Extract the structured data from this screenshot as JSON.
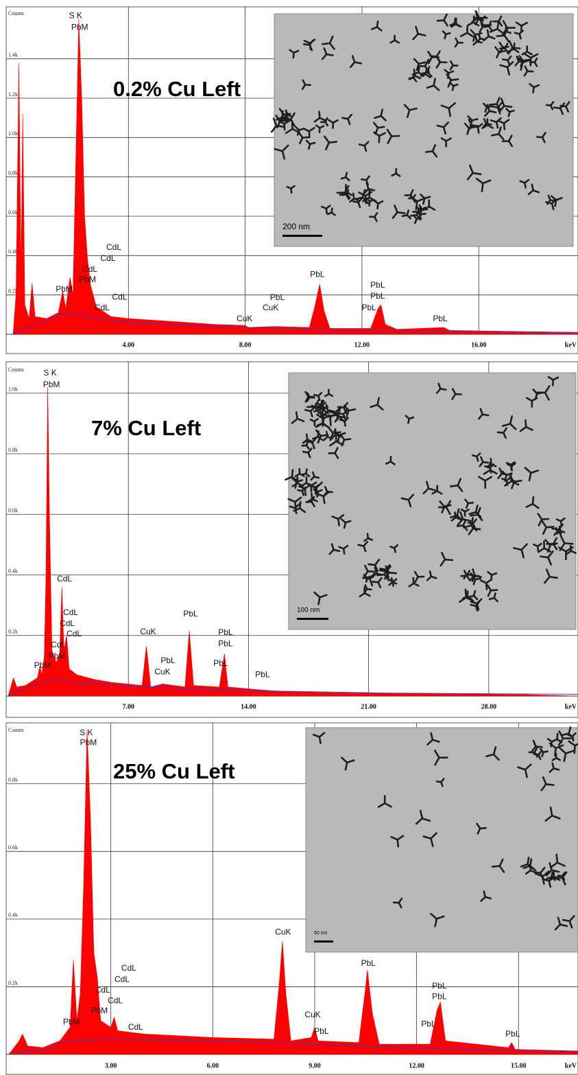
{
  "chart_data": [
    {
      "type": "spectrum",
      "title": "0.2% Cu Left",
      "y_label": "Counts",
      "x_label": "keV",
      "xlim": [
        0,
        19.4
      ],
      "ylim": [
        0,
        1650
      ],
      "xticks": [
        {
          "value": 4,
          "label": "4.00"
        },
        {
          "value": 8,
          "label": "8.00"
        },
        {
          "value": 12,
          "label": "12.00"
        },
        {
          "value": 16,
          "label": "16.00"
        }
      ],
      "yticks": [
        {
          "value": 200,
          "label": "0.2k"
        },
        {
          "value": 400,
          "label": "0.4k"
        },
        {
          "value": 600,
          "label": "0.6k"
        },
        {
          "value": 800,
          "label": "0.8k"
        },
        {
          "value": 1000,
          "label": "1.0k"
        },
        {
          "value": 1200,
          "label": "1.2k"
        },
        {
          "value": 1400,
          "label": "1.4k"
        }
      ],
      "grid": true,
      "series": [
        {
          "type": "area",
          "color": "#ff0000",
          "x": [
            0.05,
            0.15,
            0.25,
            0.32,
            0.38,
            0.45,
            0.6,
            0.7,
            0.8,
            1.2,
            1.6,
            1.75,
            1.85,
            2.0,
            2.1,
            2.2,
            2.3,
            2.4,
            2.5,
            2.6,
            2.7,
            2.9,
            3.1,
            3.4,
            4,
            5,
            6,
            7,
            8.0,
            8.1,
            9.0,
            10.2,
            10.4,
            10.55,
            10.7,
            10.9,
            12.3,
            12.55,
            12.65,
            12.8,
            13.2,
            14.8,
            15,
            17,
            19.4
          ],
          "values": [
            0,
            200,
            1380,
            300,
            1120,
            150,
            80,
            260,
            90,
            80,
            110,
            220,
            130,
            290,
            200,
            900,
            1600,
            1200,
            600,
            380,
            250,
            140,
            120,
            90,
            80,
            70,
            60,
            50,
            45,
            35,
            40,
            35,
            150,
            255,
            120,
            30,
            30,
            130,
            150,
            50,
            25,
            35,
            20,
            15,
            10
          ]
        },
        {
          "type": "line",
          "color": "#3a3ad0",
          "x": [
            0,
            1.0,
            1.9,
            2.5,
            4,
            8,
            12,
            16,
            19.4
          ],
          "values": [
            0,
            60,
            110,
            90,
            60,
            35,
            20,
            12,
            8
          ]
        }
      ],
      "annotations": [
        {
          "text": "S K",
          "x": 2.19,
          "y": 1618
        },
        {
          "text": "PbM",
          "x": 2.33,
          "y": 1559
        },
        {
          "text": "CdL",
          "x": 3.5,
          "y": 440
        },
        {
          "text": "CdL",
          "x": 3.3,
          "y": 384
        },
        {
          "text": "CdL",
          "x": 2.68,
          "y": 328
        },
        {
          "text": "PbM",
          "x": 2.6,
          "y": 276
        },
        {
          "text": "PbM",
          "x": 1.8,
          "y": 227
        },
        {
          "text": "CdL",
          "x": 3.7,
          "y": 188
        },
        {
          "text": "CdL",
          "x": 3.1,
          "y": 133
        },
        {
          "text": "PbL",
          "x": 10.47,
          "y": 303
        },
        {
          "text": "PbL",
          "x": 9.1,
          "y": 185
        },
        {
          "text": "CuK",
          "x": 8.87,
          "y": 133
        },
        {
          "text": "CuK",
          "x": 7.98,
          "y": 77
        },
        {
          "text": "PbL",
          "x": 12.54,
          "y": 248
        },
        {
          "text": "PbL",
          "x": 12.54,
          "y": 192
        },
        {
          "text": "PbL",
          "x": 12.24,
          "y": 133
        },
        {
          "text": "PbL",
          "x": 14.68,
          "y": 77
        }
      ],
      "inset": {
        "scale_bar": "200 nm"
      }
    },
    {
      "type": "spectrum",
      "title": "7% Cu Left",
      "y_label": "Counts",
      "x_label": "keV",
      "xlim": [
        0,
        33.2
      ],
      "ylim": [
        0,
        1090
      ],
      "xticks": [
        {
          "value": 7,
          "label": "7.00"
        },
        {
          "value": 14,
          "label": "14.00"
        },
        {
          "value": 21,
          "label": "21.00"
        },
        {
          "value": 28,
          "label": "28.00"
        }
      ],
      "yticks": [
        {
          "value": 200,
          "label": "0.2k"
        },
        {
          "value": 400,
          "label": "0.4k"
        },
        {
          "value": 600,
          "label": "0.6k"
        },
        {
          "value": 800,
          "label": "0.8k"
        },
        {
          "value": 1000,
          "label": "1.0k"
        }
      ],
      "grid": true,
      "series": [
        {
          "type": "area",
          "color": "#ff0000",
          "x": [
            0,
            0.2,
            0.3,
            0.5,
            1.0,
            1.7,
            1.85,
            1.95,
            2.1,
            2.2,
            2.3,
            2.4,
            2.55,
            2.8,
            3.0,
            3.13,
            3.25,
            3.4,
            3.55,
            4,
            5,
            6,
            7.8,
            8.05,
            8.3,
            9.0,
            10.3,
            10.55,
            10.8,
            12.3,
            12.6,
            12.8,
            14.8,
            16,
            20,
            25,
            30,
            33.2
          ],
          "values": [
            0,
            40,
            60,
            30,
            35,
            60,
            100,
            70,
            130,
            400,
            1020,
            600,
            150,
            110,
            140,
            360,
            150,
            200,
            90,
            70,
            55,
            45,
            35,
            165,
            30,
            40,
            30,
            215,
            35,
            30,
            140,
            30,
            20,
            15,
            10,
            8,
            5,
            0
          ]
        },
        {
          "type": "line",
          "color": "#3a3ad0",
          "x": [
            0,
            1.5,
            2.5,
            4,
            8,
            14,
            22,
            33.2
          ],
          "values": [
            5,
            35,
            55,
            45,
            30,
            18,
            10,
            6
          ]
        }
      ],
      "annotations": [
        {
          "text": "S K",
          "x": 2.44,
          "y": 1066
        },
        {
          "text": "PbM",
          "x": 2.52,
          "y": 1027
        },
        {
          "text": "CdL",
          "x": 3.28,
          "y": 386
        },
        {
          "text": "CdL",
          "x": 3.64,
          "y": 275
        },
        {
          "text": "CdL",
          "x": 3.44,
          "y": 238
        },
        {
          "text": "CdL",
          "x": 3.84,
          "y": 204
        },
        {
          "text": "CdL",
          "x": 2.92,
          "y": 168
        },
        {
          "text": "PbM",
          "x": 2.84,
          "y": 131
        },
        {
          "text": "PbM",
          "x": 2.0,
          "y": 100
        },
        {
          "text": "CuK",
          "x": 8.15,
          "y": 211
        },
        {
          "text": "PbL",
          "x": 10.63,
          "y": 270
        },
        {
          "text": "PbL",
          "x": 9.31,
          "y": 116
        },
        {
          "text": "CuK",
          "x": 8.99,
          "y": 79
        },
        {
          "text": "PbL",
          "x": 12.66,
          "y": 209
        },
        {
          "text": "PbL",
          "x": 12.66,
          "y": 172
        },
        {
          "text": "PbL",
          "x": 12.38,
          "y": 107
        },
        {
          "text": "PbL",
          "x": 14.82,
          "y": 70
        }
      ],
      "inset": {
        "scale_bar": "100 nm"
      }
    },
    {
      "type": "spectrum",
      "title": "25% Cu Left",
      "y_label": "Counts",
      "x_label": "keV",
      "xlim": [
        0,
        16.75
      ],
      "ylim": [
        0,
        970
      ],
      "xticks": [
        {
          "value": 3,
          "label": "3.00"
        },
        {
          "value": 6,
          "label": "6.00"
        },
        {
          "value": 9,
          "label": "9.00"
        },
        {
          "value": 12,
          "label": "12.00"
        },
        {
          "value": 15,
          "label": "15.00"
        }
      ],
      "yticks": [
        {
          "value": 200,
          "label": "0.2k"
        },
        {
          "value": 400,
          "label": "0.4k"
        },
        {
          "value": 600,
          "label": "0.6k"
        },
        {
          "value": 800,
          "label": "0.8k"
        }
      ],
      "grid": true,
      "series": [
        {
          "type": "area",
          "color": "#ff0000",
          "x": [
            0,
            0.3,
            0.4,
            0.55,
            1.0,
            1.5,
            1.8,
            1.9,
            2.0,
            2.1,
            2.2,
            2.3,
            2.4,
            2.5,
            2.6,
            2.7,
            3.0,
            3.1,
            3.2,
            4,
            6,
            7.8,
            7.95,
            8.05,
            8.15,
            8.3,
            8.9,
            9.0,
            9.1,
            10.3,
            10.5,
            10.55,
            10.7,
            10.9,
            12.4,
            12.6,
            12.7,
            12.85,
            14.7,
            14.8,
            14.9,
            16.75
          ],
          "values": [
            0,
            40,
            60,
            25,
            20,
            40,
            80,
            280,
            100,
            180,
            500,
            960,
            700,
            300,
            230,
            100,
            80,
            110,
            70,
            60,
            50,
            45,
            200,
            335,
            180,
            40,
            50,
            80,
            40,
            35,
            200,
            250,
            120,
            30,
            30,
            130,
            155,
            40,
            20,
            35,
            15,
            10
          ]
        },
        {
          "type": "line",
          "color": "#3a3ad0",
          "x": [
            0,
            1.2,
            1.7,
            3,
            6,
            9,
            12,
            16.75
          ],
          "values": [
            5,
            15,
            40,
            45,
            40,
            30,
            18,
            10
          ]
        }
      ],
      "annotations": [
        {
          "text": "S K",
          "x": 2.28,
          "y": 950
        },
        {
          "text": "PbM",
          "x": 2.34,
          "y": 921
        },
        {
          "text": "CdL",
          "x": 3.53,
          "y": 254
        },
        {
          "text": "CdL",
          "x": 3.33,
          "y": 221
        },
        {
          "text": "CdL",
          "x": 2.76,
          "y": 189
        },
        {
          "text": "CdL",
          "x": 3.13,
          "y": 158
        },
        {
          "text": "PbM",
          "x": 2.66,
          "y": 128
        },
        {
          "text": "PbM",
          "x": 1.84,
          "y": 95
        },
        {
          "text": "CdL",
          "x": 3.73,
          "y": 79
        },
        {
          "text": "CuK",
          "x": 8.07,
          "y": 361
        },
        {
          "text": "PbL",
          "x": 10.58,
          "y": 268
        },
        {
          "text": "CuK",
          "x": 8.94,
          "y": 116
        },
        {
          "text": "PbL",
          "x": 9.2,
          "y": 67
        },
        {
          "text": "PbL",
          "x": 12.67,
          "y": 201
        },
        {
          "text": "PbL",
          "x": 12.67,
          "y": 170
        },
        {
          "text": "PbL",
          "x": 12.35,
          "y": 89
        },
        {
          "text": "PbL",
          "x": 14.83,
          "y": 59
        }
      ],
      "inset": {
        "scale_bar": "50 nm"
      }
    }
  ]
}
